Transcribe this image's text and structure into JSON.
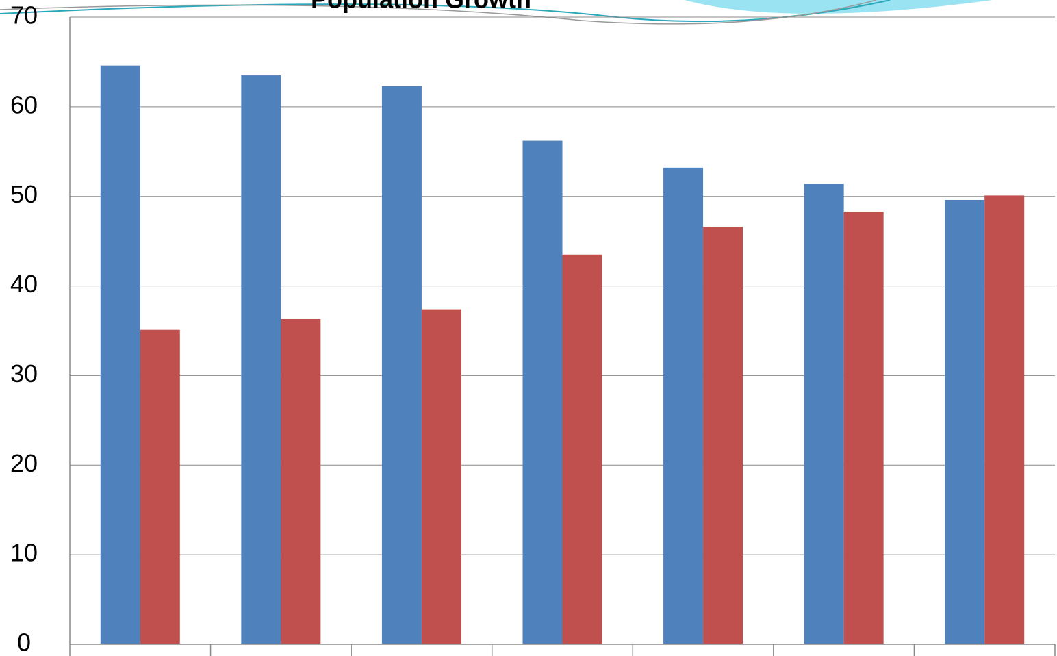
{
  "chart_data": {
    "type": "bar",
    "title": "Population Growth",
    "categories": [
      null,
      null,
      null,
      null,
      null,
      null,
      null
    ],
    "series": [
      {
        "color": "#4f81bd",
        "values": [
          64.6,
          63.5,
          62.3,
          56.2,
          53.2,
          51.4,
          49.6
        ]
      },
      {
        "color": "#c0504d",
        "values": [
          35.1,
          36.3,
          37.4,
          43.5,
          46.6,
          48.3,
          50.1
        ]
      }
    ],
    "ylim": [
      0,
      70
    ],
    "yticks": [
      0,
      10,
      20,
      30,
      40,
      50,
      60,
      70
    ],
    "grid": true
  }
}
